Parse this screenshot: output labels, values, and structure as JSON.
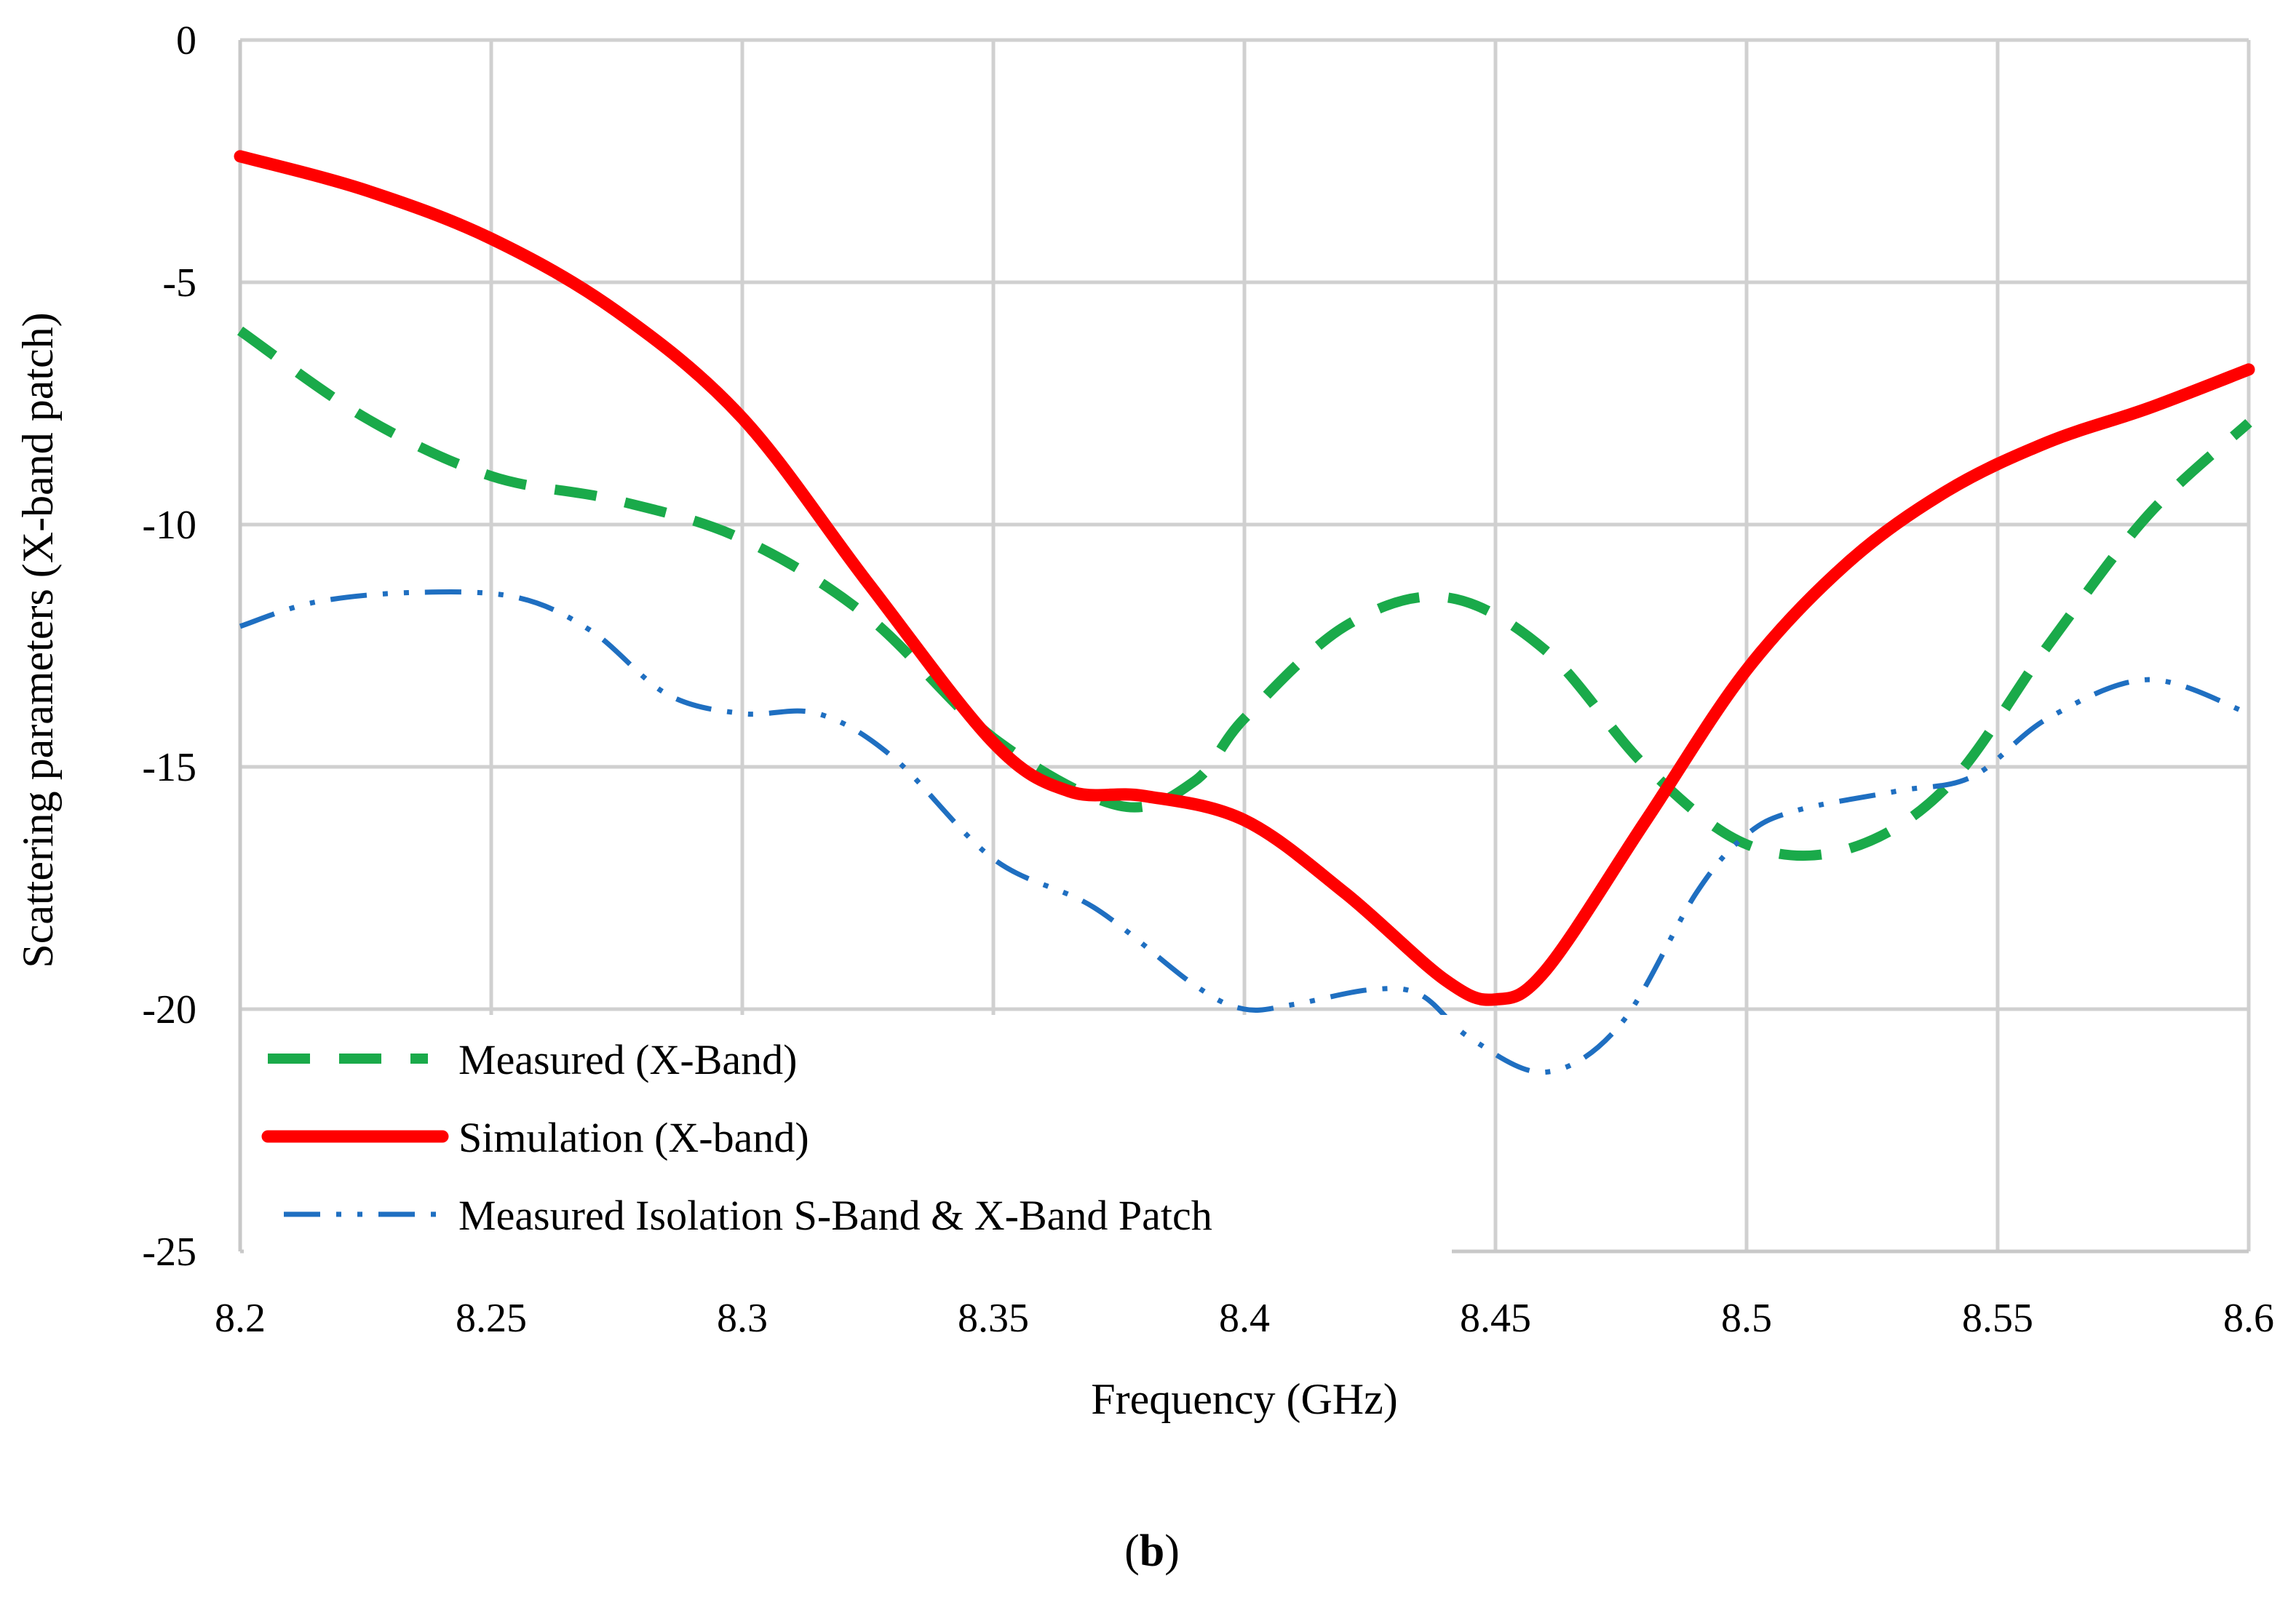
{
  "chart_data": {
    "type": "line",
    "title": "",
    "xlabel": "Frequency (GHz)",
    "ylabel": "Scattering parameters (X-band patch)",
    "xlim": [
      8.2,
      8.6
    ],
    "ylim": [
      -25,
      0
    ],
    "x_ticks": [
      "8.2",
      "8.25",
      "8.3",
      "8.35",
      "8.4",
      "8.45",
      "8.5",
      "8.55",
      "8.6"
    ],
    "y_ticks": [
      "0",
      "-5",
      "-10",
      "-15",
      "-20",
      "-25"
    ],
    "grid": true,
    "legend_position": "bottom-left",
    "series": [
      {
        "name": "Measured (X-Band)",
        "color": "#1aaa4a",
        "style": "dashed",
        "x": [
          8.2,
          8.225,
          8.25,
          8.275,
          8.3,
          8.325,
          8.35,
          8.375,
          8.39,
          8.4,
          8.42,
          8.44,
          8.46,
          8.48,
          8.5,
          8.52,
          8.54,
          8.56,
          8.58,
          8.6
        ],
        "y": [
          -6.0,
          -7.8,
          -9.0,
          -9.5,
          -10.3,
          -11.9,
          -14.4,
          -15.8,
          -15.3,
          -14.0,
          -12.1,
          -11.5,
          -12.6,
          -15.0,
          -16.6,
          -16.7,
          -15.4,
          -12.5,
          -9.8,
          -7.9
        ]
      },
      {
        "name": "Simulation (X-band)",
        "color": "#ff0000",
        "style": "solid",
        "x": [
          8.2,
          8.225,
          8.25,
          8.275,
          8.3,
          8.325,
          8.35,
          8.365,
          8.38,
          8.4,
          8.42,
          8.44,
          8.45,
          8.46,
          8.48,
          8.5,
          8.52,
          8.54,
          8.56,
          8.58,
          8.6
        ],
        "y": [
          -2.4,
          -3.1,
          -4.1,
          -5.6,
          -7.8,
          -11.2,
          -14.5,
          -15.5,
          -15.6,
          -16.1,
          -17.6,
          -19.4,
          -19.8,
          -19.2,
          -16.1,
          -13.0,
          -10.8,
          -9.3,
          -8.3,
          -7.6,
          -6.8
        ]
      },
      {
        "name": "Measured Isolation S-Band & X-Band Patch",
        "color": "#1f6fc1",
        "style": "dash-dot-dot",
        "x": [
          8.2,
          8.215,
          8.235,
          8.255,
          8.27,
          8.285,
          8.3,
          8.315,
          8.33,
          8.35,
          8.37,
          8.39,
          8.4,
          8.41,
          8.425,
          8.435,
          8.445,
          8.46,
          8.475,
          8.49,
          8.5,
          8.51,
          8.53,
          8.545,
          8.56,
          8.58,
          8.6
        ],
        "y": [
          -12.1,
          -11.6,
          -11.4,
          -11.5,
          -12.2,
          -13.5,
          -13.9,
          -13.9,
          -14.8,
          -16.9,
          -17.9,
          -19.5,
          -20.0,
          -19.9,
          -19.6,
          -19.7,
          -20.6,
          -21.3,
          -20.3,
          -17.6,
          -16.4,
          -15.9,
          -15.5,
          -15.2,
          -14.0,
          -13.2,
          -13.9
        ]
      }
    ],
    "caption": {
      "open": "(",
      "bold": "b",
      "close": ")"
    }
  }
}
